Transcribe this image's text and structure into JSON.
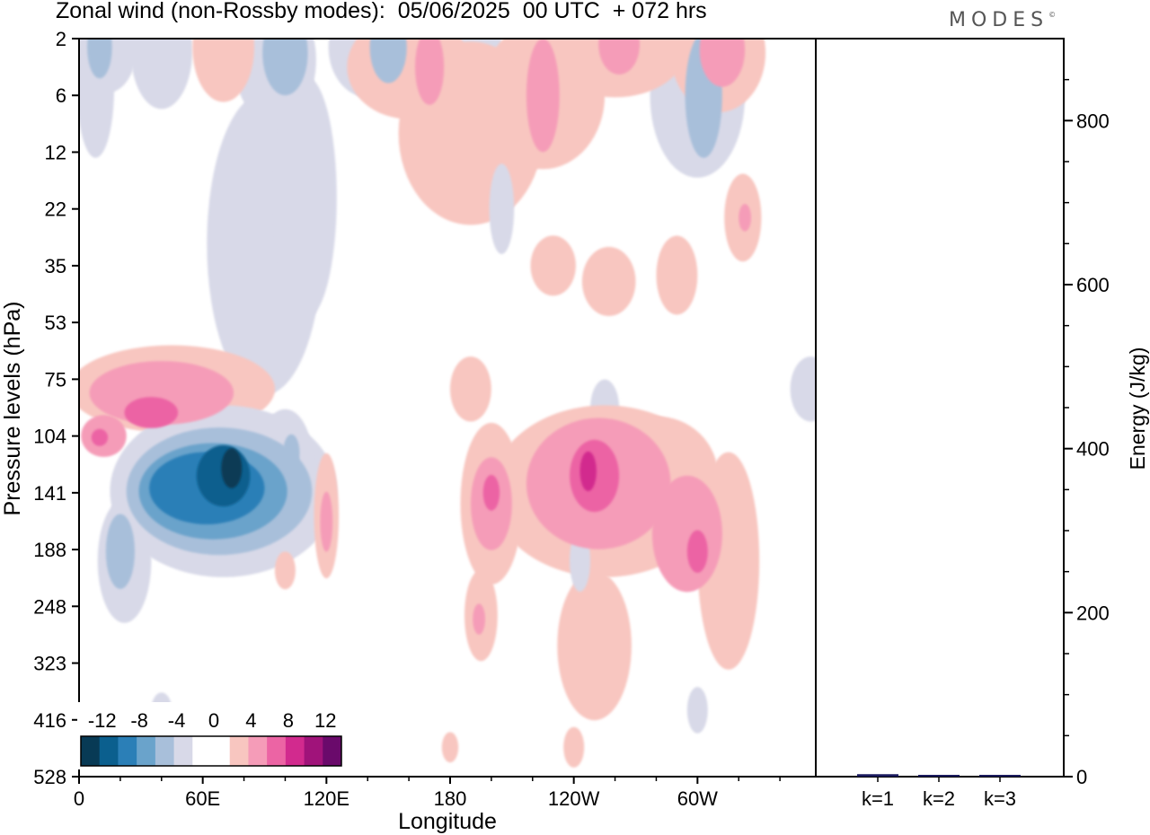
{
  "title": "Zonal wind (non-Rossby modes):  05/06/2025  00 UTC  + 072 hrs",
  "logo": {
    "text": "MODES",
    "mark": "©"
  },
  "chart_data": [
    {
      "type": "heatmap",
      "title": "Zonal wind (non-Rossby modes):  05/06/2025  00 UTC  + 072 hrs",
      "xlabel": "Longitude",
      "ylabel": "Pressure levels (hPa)",
      "x_ticks": [
        "0",
        "60E",
        "120E",
        "180",
        "120W",
        "60W"
      ],
      "y_ticks": [
        "2",
        "6",
        "12",
        "22",
        "35",
        "53",
        "75",
        "104",
        "141",
        "188",
        "248",
        "323",
        "416",
        "528"
      ],
      "colorbar": {
        "labels": [
          "-12",
          "-8",
          "-4",
          "0",
          "4",
          "8",
          "12"
        ],
        "colors": [
          "#083a55",
          "#0b5f8e",
          "#2b7fb7",
          "#6aa3cb",
          "#a8bfda",
          "#d8d9e8",
          "#ffffff",
          "#ffffff",
          "#f8c6c0",
          "#f59cb8",
          "#ec64a4",
          "#d22a8e",
          "#a0137a",
          "#6a0a6b"
        ]
      },
      "features": [
        {
          "lon": 67,
          "level": 141,
          "value": -13
        },
        {
          "lon": 200,
          "level": 141,
          "value": 9
        },
        {
          "lon": 252,
          "level": 127,
          "value": 10
        },
        {
          "lon": 300,
          "level": 178,
          "value": 8
        },
        {
          "lon": 10,
          "level": 112,
          "value": 8
        },
        {
          "lon": 40,
          "level": 104,
          "value": 7
        }
      ]
    },
    {
      "type": "bar",
      "categories": [
        "k=1",
        "k=2",
        "k=3"
      ],
      "values": [
        3,
        2,
        1
      ],
      "ylabel": "Energy (J/kg)",
      "y_ticks": [
        "0",
        "200",
        "400",
        "600",
        "800"
      ],
      "ylim": [
        0,
        900
      ]
    }
  ]
}
